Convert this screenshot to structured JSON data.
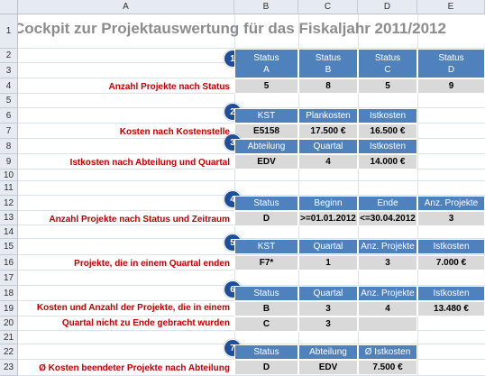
{
  "columns": [
    "A",
    "B",
    "C",
    "D",
    "E"
  ],
  "rows": [
    "1",
    "2",
    "3",
    "4",
    "5",
    "6",
    "7",
    "8",
    "9",
    "10",
    "11",
    "12",
    "13",
    "14",
    "15",
    "16",
    "17",
    "18",
    "19",
    "20",
    "21",
    "22",
    "23"
  ],
  "title": "Cockpit zur Projektauswertung für das Fiskaljahr 2011/2012",
  "sections": [
    {
      "badge": "1",
      "label": "Anzahl  Projekte nach Status",
      "headers": [
        "Status\nA",
        "Status\nB",
        "Status\nC",
        "Status\nD"
      ],
      "headers_line1": [
        "Status",
        "Status",
        "Status",
        "Status"
      ],
      "headers_line2": [
        "A",
        "B",
        "C",
        "D"
      ],
      "values": [
        "5",
        "8",
        "5",
        "9"
      ]
    },
    {
      "badge": "2",
      "label": "Kosten nach Kostenstelle",
      "headers": [
        "KST",
        "Plankosten",
        "Istkosten"
      ],
      "values": [
        "E5158",
        "17.500 €",
        "16.500 €"
      ]
    },
    {
      "badge": "3",
      "label": "Istkosten nach Abteilung und Quartal",
      "headers": [
        "Abteilung",
        "Quartal",
        "Istkosten"
      ],
      "values": [
        "EDV",
        "4",
        "14.000 €"
      ]
    },
    {
      "badge": "4",
      "label": "Anzahl Projekte nach Status und Zeitraum",
      "headers": [
        "Status",
        "Beginn",
        "Ende",
        "Anz. Projekte"
      ],
      "values": [
        "D",
        ">=01.01.2012",
        "<=30.04.2012",
        "3"
      ]
    },
    {
      "badge": "5",
      "label": "Projekte, die in einem Quartal enden",
      "headers": [
        "KST",
        "Quartal",
        "Anz. Projekte",
        "Istkosten"
      ],
      "values": [
        "F7*",
        "1",
        "3",
        "7.000 €"
      ]
    },
    {
      "badge": "6",
      "label_line1": "Kosten und Anzahl der Projekte, die in einem",
      "label_line2": "Quartal nicht zu Ende gebracht wurden",
      "headers": [
        "Status",
        "Quartal",
        "Anz. Projekte",
        "Istkosten"
      ],
      "values_row1": [
        "B",
        "3",
        "4",
        "13.480 €"
      ],
      "values_row2": [
        "C",
        "3",
        "",
        ""
      ]
    },
    {
      "badge": "7",
      "label": "Ø Kosten beendeter Projekte nach Abteilung",
      "headers": [
        "Status",
        "Abteilung",
        "Ø Istkosten"
      ],
      "values": [
        "D",
        "EDV",
        "7.500 €"
      ]
    }
  ]
}
